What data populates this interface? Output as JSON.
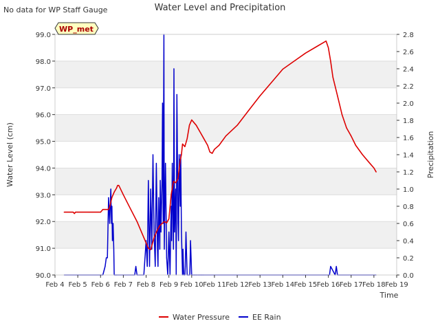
{
  "chart_data": {
    "type": "line",
    "title": "Water Level and Precipitation",
    "top_left_note": "No data for WP Staff Gauge",
    "badge": "WP_met",
    "xlabel": "Time",
    "ylabel_left": "Water Level (cm)",
    "ylabel_right": "Precipitation",
    "x_ticks": [
      "Feb 4",
      "Feb 5",
      "Feb 6",
      "Feb 7",
      "Feb 8",
      "Feb 9",
      "Feb 10",
      "Feb 11",
      "Feb 12",
      "Feb 13",
      "Feb 14",
      "Feb 15",
      "Feb 16",
      "Feb 17",
      "Feb 18",
      "Feb 19"
    ],
    "x_range": [
      4,
      19
    ],
    "y_left_range": [
      90.0,
      99.0
    ],
    "y_left_ticks": [
      "90.0",
      "91.0",
      "92.0",
      "93.0",
      "94.0",
      "95.0",
      "96.0",
      "97.0",
      "98.0",
      "99.0"
    ],
    "y_right_range": [
      0.0,
      2.8
    ],
    "y_right_ticks": [
      "0.0",
      "0.2",
      "0.4",
      "0.6",
      "0.8",
      "1.0",
      "1.2",
      "1.4",
      "1.6",
      "1.8",
      "2.0",
      "2.2",
      "2.4",
      "2.6",
      "2.8"
    ],
    "legend_position": "bottom-center",
    "background_bands": true,
    "series": [
      {
        "name": "Water Pressure",
        "axis": "left",
        "color": "#dd0000",
        "x": [
          4.4,
          4.8,
          4.85,
          4.9,
          5.5,
          6.0,
          6.1,
          6.35,
          6.4,
          6.5,
          6.6,
          6.7,
          6.75,
          6.8,
          7.0,
          7.3,
          7.6,
          7.9,
          8.1,
          8.2,
          8.25,
          8.35,
          8.5,
          8.6,
          8.8,
          8.9,
          9.0,
          9.1,
          9.2,
          9.3,
          9.4,
          9.5,
          9.55,
          9.6,
          9.7,
          9.8,
          9.9,
          10.0,
          10.1,
          10.2,
          10.4,
          10.5,
          10.7,
          10.8,
          10.9,
          11.0,
          11.2,
          11.5,
          12.0,
          12.5,
          13.0,
          13.5,
          14.0,
          14.5,
          15.0,
          15.5,
          15.9,
          16.0,
          16.1,
          16.2,
          16.4,
          16.6,
          16.8,
          17.0,
          17.2,
          17.5,
          17.8,
          18.0,
          18.1
        ],
        "values": [
          92.35,
          92.35,
          92.3,
          92.35,
          92.35,
          92.35,
          92.45,
          92.45,
          92.55,
          92.9,
          93.1,
          93.25,
          93.35,
          93.35,
          93.0,
          92.5,
          92.0,
          91.4,
          91.0,
          90.95,
          91.1,
          91.4,
          91.7,
          91.85,
          92.0,
          91.95,
          92.1,
          93.0,
          93.5,
          93.45,
          93.6,
          94.3,
          94.5,
          94.9,
          94.8,
          95.1,
          95.6,
          95.8,
          95.7,
          95.6,
          95.3,
          95.15,
          94.85,
          94.6,
          94.55,
          94.7,
          94.85,
          95.2,
          95.6,
          96.15,
          96.7,
          97.2,
          97.7,
          98.0,
          98.3,
          98.55,
          98.75,
          98.5,
          98.0,
          97.4,
          96.7,
          96.0,
          95.5,
          95.2,
          94.85,
          94.5,
          94.2,
          94.0,
          93.85
        ]
      },
      {
        "name": "EE Rain",
        "axis": "right",
        "color": "#0000cc",
        "x": [
          4.4,
          6.1,
          6.2,
          6.25,
          6.3,
          6.35,
          6.4,
          6.45,
          6.48,
          6.5,
          6.52,
          6.55,
          6.58,
          6.6,
          6.62,
          6.65,
          6.68,
          6.7,
          7.0,
          7.5,
          7.55,
          7.6,
          7.9,
          7.95,
          8.0,
          8.05,
          8.1,
          8.15,
          8.2,
          8.25,
          8.3,
          8.35,
          8.4,
          8.45,
          8.5,
          8.52,
          8.55,
          8.6,
          8.62,
          8.65,
          8.7,
          8.72,
          8.75,
          8.78,
          8.8,
          8.85,
          8.9,
          8.95,
          9.0,
          9.05,
          9.1,
          9.12,
          9.15,
          9.2,
          9.22,
          9.25,
          9.3,
          9.32,
          9.35,
          9.4,
          9.42,
          9.45,
          9.5,
          9.52,
          9.55,
          9.6,
          9.62,
          9.65,
          9.7,
          9.72,
          9.75,
          9.8,
          9.82,
          9.85,
          9.9,
          9.92,
          9.95,
          10.0,
          10.05,
          10.1,
          10.15,
          10.2,
          10.3,
          10.35,
          10.4,
          10.45,
          10.5,
          16.0,
          16.05,
          16.1,
          16.3,
          16.35,
          16.4,
          18.1
        ],
        "values": [
          0.0,
          0.0,
          0.1,
          0.2,
          0.2,
          0.9,
          0.6,
          1.0,
          0.6,
          0.8,
          0.4,
          0.6,
          0.3,
          0.0,
          0.0,
          0.0,
          0.0,
          0.0,
          0.0,
          0.0,
          0.1,
          0.0,
          0.0,
          0.2,
          0.4,
          0.1,
          1.1,
          0.1,
          1.0,
          0.3,
          1.4,
          0.5,
          0.1,
          1.3,
          0.3,
          0.1,
          0.9,
          0.3,
          1.1,
          0.5,
          1.1,
          2.0,
          0.6,
          2.8,
          0.3,
          1.3,
          0.2,
          0.0,
          0.5,
          0.0,
          0.8,
          0.4,
          1.3,
          0.3,
          2.4,
          0.5,
          1.0,
          0.0,
          2.1,
          0.6,
          0.4,
          1.4,
          0.8,
          1.4,
          0.5,
          0.0,
          0.3,
          0.0,
          0.0,
          0.1,
          0.5,
          0.0,
          0.0,
          0.0,
          0.0,
          0.0,
          0.4,
          0.0,
          0.0,
          0.0,
          0.0,
          0.0,
          0.0,
          0.0,
          0.0,
          0.0,
          0.0,
          0.0,
          0.0,
          0.1,
          0.0,
          0.1,
          0.0,
          0.0
        ]
      }
    ]
  }
}
